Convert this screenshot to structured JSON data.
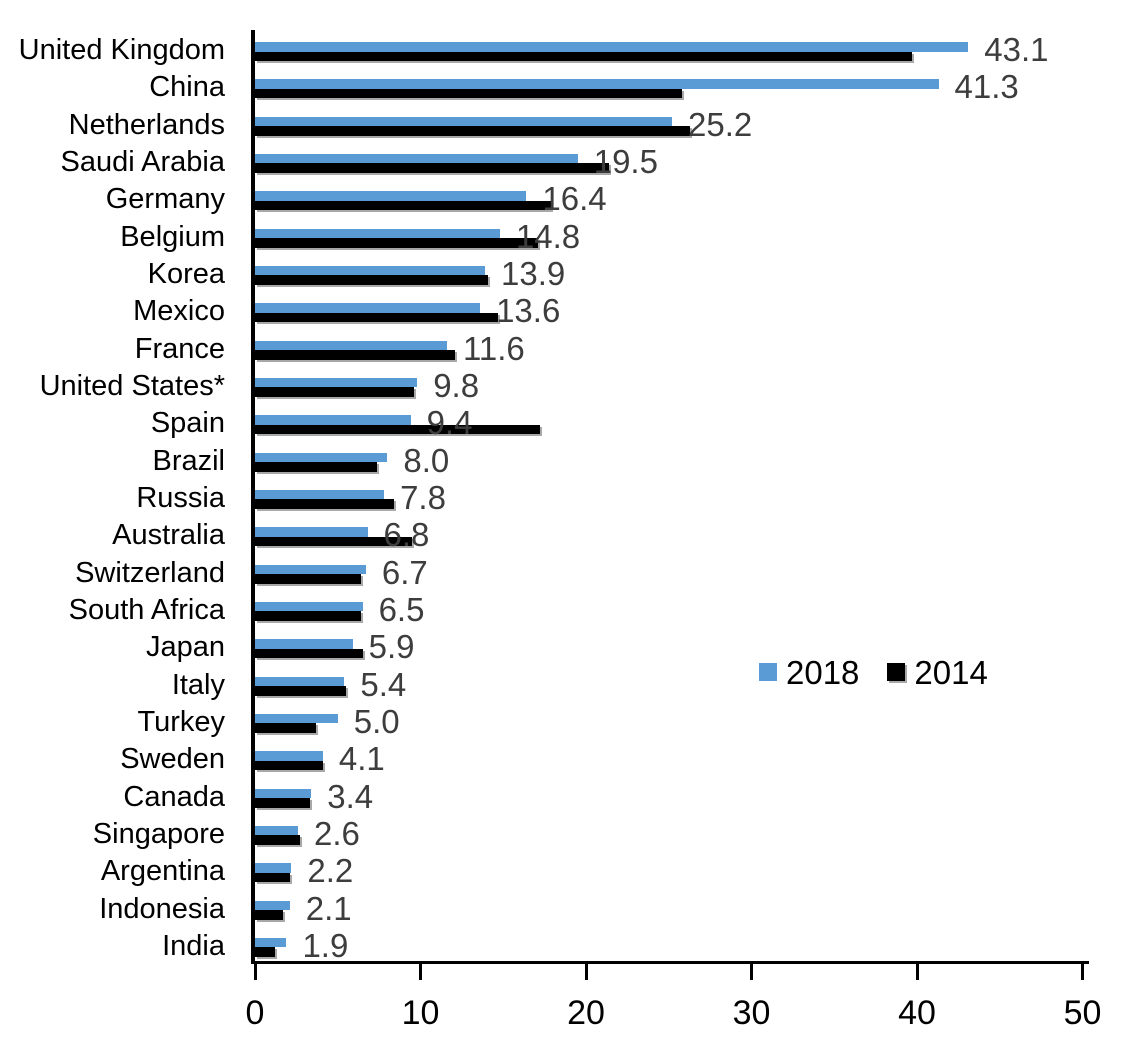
{
  "chart_data": {
    "type": "bar",
    "orientation": "horizontal",
    "title": "",
    "xlabel": "",
    "ylabel": "",
    "xlim": [
      0,
      50
    ],
    "x_ticks": [
      "0",
      "10",
      "20",
      "30",
      "40",
      "50"
    ],
    "grid": false,
    "legend_position": "middle-right",
    "categories": [
      "United Kingdom",
      "China",
      "Netherlands",
      "Saudi Arabia",
      "Germany",
      "Belgium",
      "Korea",
      "Mexico",
      "France",
      "United States*",
      "Spain",
      "Brazil",
      "Russia",
      "Australia",
      "Switzerland",
      "South Africa",
      "Japan",
      "Italy",
      "Turkey",
      "Sweden",
      "Canada",
      "Singapore",
      "Argentina",
      "Indonesia",
      "India"
    ],
    "series": [
      {
        "name": "2018",
        "color": "#5b9bd5",
        "values": [
          43.1,
          41.3,
          25.2,
          19.5,
          16.4,
          14.8,
          13.9,
          13.6,
          11.6,
          9.8,
          9.4,
          8.0,
          7.8,
          6.8,
          6.7,
          6.5,
          5.9,
          5.4,
          5.0,
          4.1,
          3.4,
          2.6,
          2.2,
          2.1,
          1.9
        ]
      },
      {
        "name": "2014",
        "color": "#000000",
        "values": [
          39.7,
          25.8,
          26.3,
          21.4,
          17.9,
          17.1,
          14.1,
          14.7,
          12.1,
          9.6,
          17.2,
          7.4,
          8.4,
          9.5,
          6.4,
          6.4,
          6.5,
          5.5,
          3.7,
          4.1,
          3.3,
          2.7,
          2.1,
          1.7,
          1.2
        ]
      }
    ],
    "data_labels_2018": [
      "43.1",
      "41.3",
      "25.2",
      "19.5",
      "16.4",
      "14.8",
      "13.9",
      "13.6",
      "11.6",
      "9.8",
      "9.4",
      "8.0",
      "7.8",
      "6.8",
      "6.7",
      "6.5",
      "5.9",
      "5.4",
      "5.0",
      "4.1",
      "3.4",
      "2.6",
      "2.2",
      "2.1",
      "1.9"
    ],
    "value_label_color": "#3d3d3d"
  },
  "legend": {
    "label_2018": "2018",
    "label_2014": "2014"
  }
}
